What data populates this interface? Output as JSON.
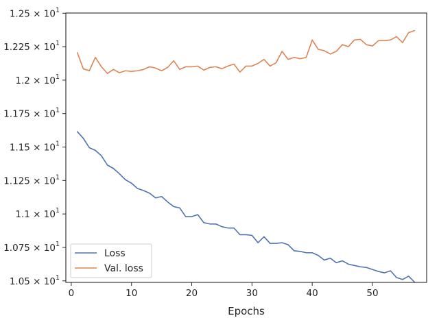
{
  "chart_data": {
    "type": "line",
    "title": "",
    "xlabel": "Epochs",
    "ylabel": "",
    "xlim": [
      -0.9,
      59.0
    ],
    "ylim": [
      10.4885,
      12.5015
    ],
    "x_ticks": [
      0,
      10,
      20,
      30,
      40,
      50
    ],
    "y_ticks": [
      {
        "value": 10.5,
        "mantissa": "1.05",
        "exponent": "1"
      },
      {
        "value": 10.75,
        "mantissa": "1.075",
        "exponent": "1"
      },
      {
        "value": 11.0,
        "mantissa": "1.1",
        "exponent": "1"
      },
      {
        "value": 11.25,
        "mantissa": "1.125",
        "exponent": "1"
      },
      {
        "value": 11.5,
        "mantissa": "1.15",
        "exponent": "1"
      },
      {
        "value": 11.75,
        "mantissa": "1.175",
        "exponent": "1"
      },
      {
        "value": 12.0,
        "mantissa": "1.2",
        "exponent": "1"
      },
      {
        "value": 12.25,
        "mantissa": "1.225",
        "exponent": "1"
      },
      {
        "value": 12.5,
        "mantissa": "1.25",
        "exponent": "1"
      }
    ],
    "tick_times": "× 10",
    "grid": false,
    "legend_position": "lower-left",
    "x": [
      1,
      2,
      3,
      4,
      5,
      6,
      7,
      8,
      9,
      10,
      11,
      12,
      13,
      14,
      15,
      16,
      17,
      18,
      19,
      20,
      21,
      22,
      23,
      24,
      25,
      26,
      27,
      28,
      29,
      30,
      31,
      32,
      33,
      34,
      35,
      36,
      37,
      38,
      39,
      40,
      41,
      42,
      43,
      44,
      45,
      46,
      47,
      48,
      49,
      50,
      51,
      52,
      53,
      54,
      55,
      56,
      57
    ],
    "series": [
      {
        "name": "Loss",
        "color": "#4c72b0",
        "values": [
          11.615,
          11.565,
          11.495,
          11.475,
          11.435,
          11.365,
          11.34,
          11.3,
          11.255,
          11.23,
          11.19,
          11.175,
          11.155,
          11.12,
          11.13,
          11.09,
          11.055,
          11.045,
          10.98,
          10.98,
          10.995,
          10.935,
          10.925,
          10.925,
          10.905,
          10.895,
          10.895,
          10.845,
          10.845,
          10.84,
          10.785,
          10.83,
          10.78,
          10.78,
          10.785,
          10.77,
          10.725,
          10.72,
          10.71,
          10.71,
          10.69,
          10.655,
          10.67,
          10.635,
          10.65,
          10.625,
          10.615,
          10.605,
          10.6,
          10.585,
          10.57,
          10.56,
          10.575,
          10.525,
          10.51,
          10.535,
          10.49
        ]
      },
      {
        "name": "Val. loss",
        "color": "#dd8452",
        "values": [
          12.205,
          12.085,
          12.07,
          12.17,
          12.1,
          12.05,
          12.08,
          12.055,
          12.07,
          12.065,
          12.07,
          12.08,
          12.1,
          12.09,
          12.07,
          12.095,
          12.145,
          12.08,
          12.1,
          12.1,
          12.105,
          12.075,
          12.095,
          12.1,
          12.085,
          12.105,
          12.12,
          12.06,
          12.105,
          12.105,
          12.125,
          12.155,
          12.105,
          12.13,
          12.215,
          12.155,
          12.17,
          12.16,
          12.17,
          12.3,
          12.23,
          12.22,
          12.195,
          12.215,
          12.265,
          12.25,
          12.3,
          12.305,
          12.265,
          12.255,
          12.295,
          12.295,
          12.3,
          12.325,
          12.28,
          12.355,
          12.37
        ]
      }
    ]
  }
}
